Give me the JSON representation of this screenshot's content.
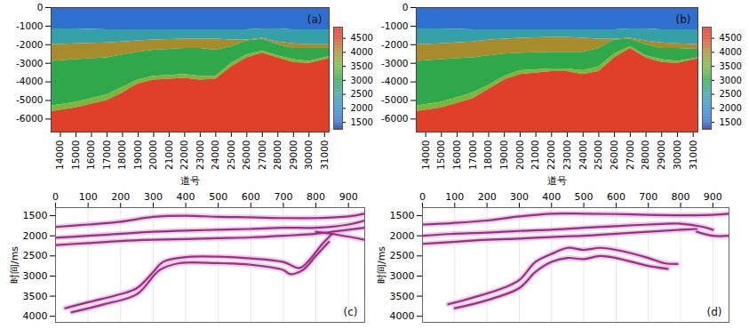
{
  "chart_data": [
    {
      "type": "area",
      "annotation": "(a)",
      "x_label": "道号",
      "xlim": [
        13400,
        31300
      ],
      "ylim": [
        -6700,
        0
      ],
      "xticks": [
        14000,
        15000,
        16000,
        17000,
        18000,
        19000,
        20000,
        21000,
        22000,
        23000,
        24000,
        25000,
        26000,
        27000,
        28000,
        29000,
        30000,
        31000
      ],
      "yticks": [
        0,
        -1000,
        -2000,
        -3000,
        -4000,
        -5000,
        -6000
      ],
      "x": [
        13400,
        15000,
        17000,
        18000,
        19000,
        20000,
        22000,
        23000,
        24000,
        25000,
        26000,
        27000,
        28000,
        29000,
        30000,
        31300
      ],
      "velocities": [
        1500,
        2500,
        4000,
        3000,
        3500,
        4500
      ],
      "boundaries": [
        [
          -1150,
          -1150,
          -1200,
          -1200,
          -1200,
          -1200,
          -1200,
          -1200,
          -1200,
          -1200,
          -1200,
          -1150,
          -1150,
          -1200,
          -1200,
          -1200
        ],
        [
          -2000,
          -1950,
          -1900,
          -1850,
          -1800,
          -1750,
          -1700,
          -1700,
          -1700,
          -1750,
          -1750,
          -1650,
          -1850,
          -1950,
          -2000,
          -2000
        ],
        [
          -2900,
          -2800,
          -2700,
          -2550,
          -2400,
          -2300,
          -2200,
          -2200,
          -2300,
          -2100,
          -1800,
          -1700,
          -2000,
          -2200,
          -2200,
          -2200
        ],
        [
          -5300,
          -5100,
          -4700,
          -4300,
          -3900,
          -3700,
          -3600,
          -3700,
          -3700,
          -3000,
          -2550,
          -2350,
          -2600,
          -2800,
          -2900,
          -2650
        ],
        [
          -5600,
          -5400,
          -5000,
          -4600,
          -4100,
          -3900,
          -3800,
          -3900,
          -3850,
          -3200,
          -2700,
          -2450,
          -2700,
          -2950,
          -3000,
          -2750
        ]
      ],
      "colorbar": {
        "range": [
          1250,
          4900
        ],
        "ticks": [
          1500,
          2000,
          2500,
          3000,
          3500,
          4000,
          4500
        ],
        "stops": [
          1250,
          1500,
          2000,
          2500,
          3000,
          3500,
          4000,
          4500,
          4900
        ],
        "colors": [
          "#1c2c90",
          "#2f6fd0",
          "#2f8fd0",
          "#36a0a8",
          "#2ea84a",
          "#78b83c",
          "#a88c2c",
          "#e0402a",
          "#e03020"
        ]
      }
    },
    {
      "type": "area",
      "annotation": "(b)",
      "x_label": "道号",
      "xlim": [
        13400,
        31300
      ],
      "ylim": [
        -6700,
        0
      ],
      "xticks": [
        14000,
        15000,
        16000,
        17000,
        18000,
        19000,
        20000,
        21000,
        22000,
        23000,
        24000,
        25000,
        26000,
        27000,
        28000,
        29000,
        30000,
        31000
      ],
      "yticks": [
        0,
        -1000,
        -2000,
        -3000,
        -4000,
        -5000,
        -6000
      ],
      "x": [
        13400,
        15000,
        17000,
        18000,
        19000,
        20000,
        22000,
        23000,
        24000,
        25000,
        26000,
        27000,
        28000,
        29000,
        30000,
        31300
      ],
      "velocities": [
        1500,
        2500,
        4000,
        3000,
        3500,
        4500
      ],
      "boundaries": [
        [
          -1150,
          -1150,
          -1200,
          -1200,
          -1200,
          -1200,
          -1200,
          -1200,
          -1200,
          -1200,
          -1200,
          -1150,
          -1150,
          -1200,
          -1200,
          -1200
        ],
        [
          -2000,
          -1950,
          -1850,
          -1750,
          -1700,
          -1650,
          -1600,
          -1600,
          -1650,
          -1700,
          -1700,
          -1650,
          -1800,
          -1900,
          -1950,
          -2000
        ],
        [
          -2900,
          -2800,
          -2700,
          -2600,
          -2500,
          -2450,
          -2400,
          -2400,
          -2400,
          -2200,
          -1750,
          -1700,
          -2000,
          -2200,
          -2200,
          -2250
        ],
        [
          -5300,
          -5100,
          -4600,
          -4200,
          -3700,
          -3400,
          -3300,
          -3300,
          -3400,
          -3200,
          -2500,
          -2100,
          -2600,
          -2800,
          -2900,
          -2700
        ],
        [
          -5600,
          -5400,
          -4900,
          -4400,
          -3900,
          -3600,
          -3450,
          -3450,
          -3600,
          -3450,
          -2700,
          -2200,
          -2700,
          -2950,
          -3000,
          -2750
        ]
      ],
      "colorbar": {
        "range": [
          1250,
          4900
        ],
        "ticks": [
          1500,
          2000,
          2500,
          3000,
          3500,
          4000,
          4500
        ],
        "stops": [
          1250,
          1500,
          2000,
          2500,
          3000,
          3500,
          4000,
          4500,
          4900
        ],
        "colors": [
          "#1c2c90",
          "#2f6fd0",
          "#2f8fd0",
          "#36a0a8",
          "#2ea84a",
          "#78b83c",
          "#a88c2c",
          "#e0402a",
          "#e03020"
        ]
      }
    },
    {
      "type": "line",
      "annotation": "(c)",
      "y_label": "时间/ms",
      "grid": true,
      "color": "#9a2f86",
      "xlim": [
        0,
        950
      ],
      "ylim": [
        1300,
        4150
      ],
      "xticks": [
        0,
        100,
        200,
        300,
        400,
        500,
        600,
        700,
        800,
        900
      ],
      "yticks": [
        1500,
        2000,
        2500,
        3000,
        3500,
        4000
      ],
      "series": [
        {
          "x": [
            0,
            100,
            200,
            300,
            400,
            500,
            600,
            700,
            800,
            900,
            950
          ],
          "values": [
            1780,
            1720,
            1650,
            1530,
            1500,
            1530,
            1540,
            1560,
            1560,
            1520,
            1450
          ]
        },
        {
          "x": [
            0,
            100,
            200,
            300,
            400,
            500,
            600,
            700,
            800,
            900,
            950
          ],
          "values": [
            2050,
            2000,
            1950,
            1900,
            1870,
            1850,
            1830,
            1800,
            1800,
            1720,
            1620
          ]
        },
        {
          "x": [
            0,
            100,
            200,
            300,
            400,
            500,
            600,
            700,
            800,
            850,
            950
          ],
          "values": [
            2230,
            2180,
            2130,
            2100,
            2080,
            2060,
            2040,
            2000,
            1950,
            1900,
            1800
          ]
        },
        {
          "x": [
            800,
            870,
            950
          ],
          "values": [
            1900,
            1980,
            2100
          ]
        },
        {
          "x": [
            30,
            100,
            200,
            250,
            300,
            330,
            400,
            500,
            600,
            700,
            750,
            780,
            820,
            850
          ],
          "values": [
            3800,
            3650,
            3450,
            3300,
            2900,
            2650,
            2530,
            2520,
            2560,
            2650,
            2800,
            2600,
            2200,
            1950
          ]
        },
        {
          "x": [
            50,
            150,
            250,
            320,
            380,
            500,
            600,
            700,
            720,
            760,
            800,
            840
          ],
          "values": [
            3900,
            3700,
            3450,
            2850,
            2680,
            2680,
            2720,
            2850,
            2950,
            2850,
            2500,
            2150
          ]
        }
      ]
    },
    {
      "type": "line",
      "annotation": "(d)",
      "y_label": "时间/ms",
      "grid": true,
      "color": "#9a2f86",
      "xlim": [
        0,
        950
      ],
      "ylim": [
        1300,
        4150
      ],
      "xticks": [
        0,
        100,
        200,
        300,
        400,
        500,
        600,
        700,
        800,
        900
      ],
      "yticks": [
        1500,
        2000,
        2500,
        3000,
        3500,
        4000
      ],
      "series": [
        {
          "x": [
            0,
            100,
            200,
            300,
            400,
            500,
            600,
            700,
            800,
            900,
            950
          ],
          "values": [
            1720,
            1680,
            1620,
            1520,
            1450,
            1450,
            1460,
            1480,
            1490,
            1480,
            1450
          ]
        },
        {
          "x": [
            0,
            100,
            200,
            300,
            400,
            500,
            600,
            700,
            800,
            870,
            900
          ],
          "values": [
            2000,
            1950,
            1920,
            1880,
            1850,
            1800,
            1760,
            1720,
            1700,
            1780,
            1850
          ]
        },
        {
          "x": [
            0,
            100,
            200,
            300,
            400,
            500,
            600,
            700,
            800,
            850
          ],
          "values": [
            2200,
            2150,
            2100,
            2070,
            2030,
            2000,
            1950,
            1900,
            1850,
            1830
          ]
        },
        {
          "x": [
            850,
            900,
            950
          ],
          "values": [
            1900,
            2000,
            2000
          ]
        },
        {
          "x": [
            80,
            150,
            250,
            300,
            350,
            400,
            450,
            500,
            550,
            600,
            700,
            750,
            790
          ],
          "values": [
            3700,
            3550,
            3300,
            3100,
            2650,
            2450,
            2300,
            2350,
            2300,
            2350,
            2550,
            2680,
            2700
          ]
        },
        {
          "x": [
            100,
            200,
            300,
            350,
            400,
            450,
            500,
            550,
            600,
            700,
            760
          ],
          "values": [
            3800,
            3600,
            3300,
            2900,
            2650,
            2550,
            2580,
            2500,
            2550,
            2750,
            2820
          ]
        }
      ]
    }
  ]
}
